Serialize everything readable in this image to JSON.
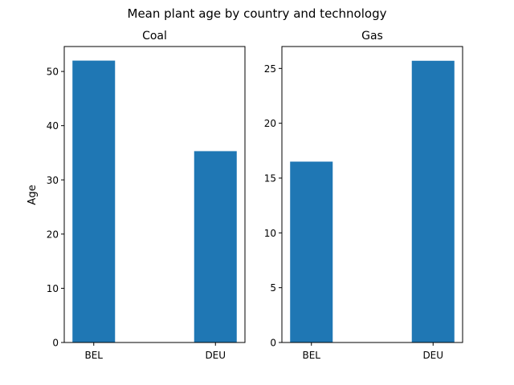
{
  "chart_data": {
    "suptitle": "Mean plant age by country and technology",
    "ylabel": "Age",
    "charts": [
      {
        "type": "bar",
        "title": "Coal",
        "categories": [
          "BEL",
          "DEU"
        ],
        "values": [
          52.0,
          35.3
        ],
        "ylim": [
          0,
          54.6
        ],
        "yticks": [
          0,
          10,
          20,
          30,
          40,
          50
        ],
        "grid": false,
        "color": "#1f77b4"
      },
      {
        "type": "bar",
        "title": "Gas",
        "categories": [
          "BEL",
          "DEU"
        ],
        "values": [
          16.5,
          25.7
        ],
        "ylim": [
          0,
          27.0
        ],
        "yticks": [
          0,
          5,
          10,
          15,
          20,
          25
        ],
        "grid": false,
        "color": "#1f77b4"
      }
    ]
  }
}
